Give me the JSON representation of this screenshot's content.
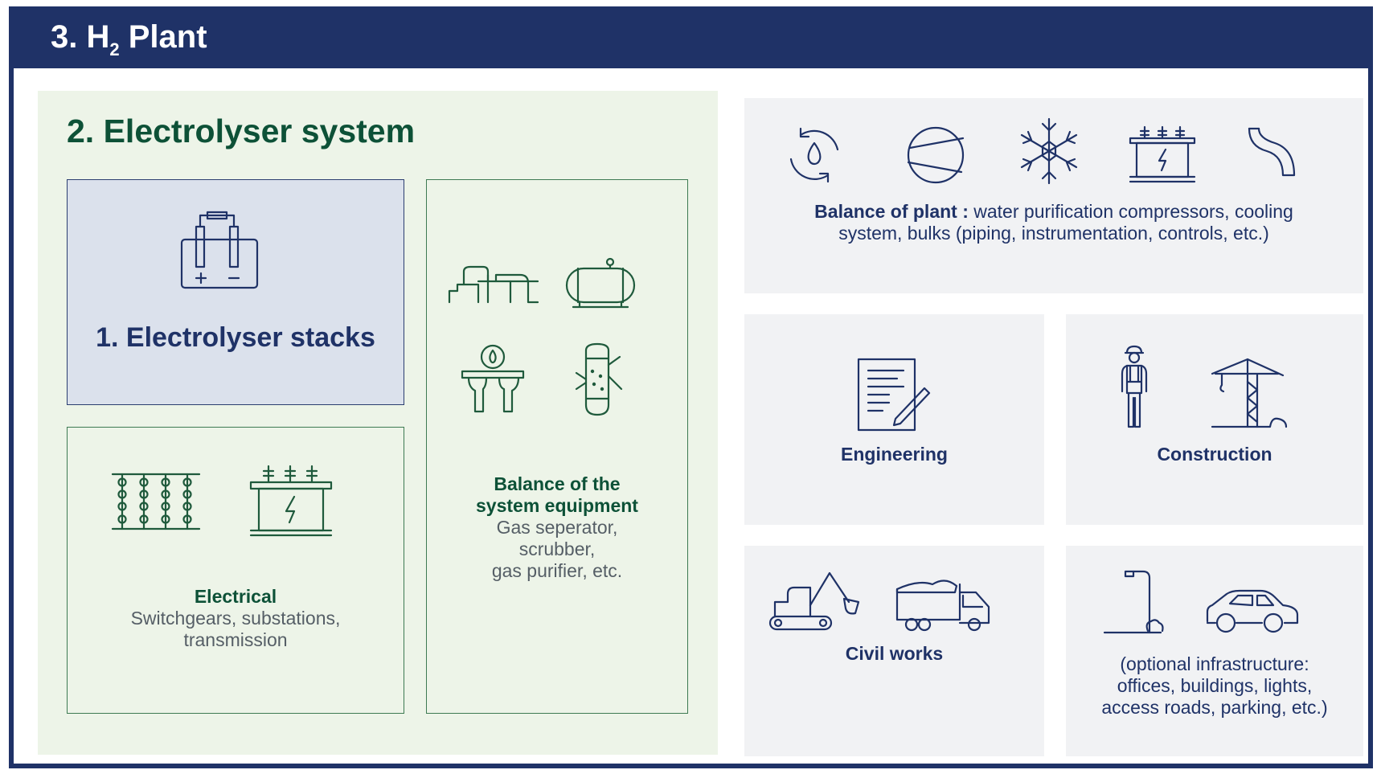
{
  "header": {
    "title_prefix": "3. H",
    "title_sub": "2",
    "title_suffix": " Plant"
  },
  "electrolyser_system": {
    "title": "2. Electrolyser system",
    "stacks_label": "1. Electrolyser stacks",
    "electrical": {
      "title": "Electrical",
      "line1": "Switchgears, substations,",
      "line2": "transmission"
    },
    "balance_system": {
      "title_line1": "Balance of the",
      "title_line2": "system equipment",
      "line1": "Gas seperator,",
      "line2": "scrubber,",
      "line3": "gas purifier, etc."
    }
  },
  "balance_of_plant": {
    "title": "Balance of plant :",
    "text_line1": " water purification compressors, cooling",
    "text_line2": "system, bulks (piping, instrumentation, controls, etc.)"
  },
  "engineering": {
    "label": "Engineering"
  },
  "construction": {
    "label": "Construction"
  },
  "civil_works": {
    "label": "Civil works"
  },
  "optional": {
    "line1": "(optional infrastructure:",
    "line2": "offices, buildings, lights,",
    "line3": "access roads, parking, etc.)"
  },
  "icons": [
    "battery-electrolyser-icon",
    "switchgear-icon",
    "transformer-icon",
    "pipeline-icon",
    "tank-icon",
    "water-treatment-icon",
    "scrubber-icon",
    "water-recycle-icon",
    "compressor-icon",
    "snowflake-icon",
    "pipe-icon",
    "document-pen-icon",
    "worker-icon",
    "crane-icon",
    "excavator-icon",
    "dump-truck-icon",
    "street-light-icon",
    "car-icon"
  ],
  "colors": {
    "navy": "#1f3267",
    "dark_green": "#0d5137",
    "light_green": "#edf4e8",
    "light_blue": "#dbe1ec",
    "light_gray": "#f1f2f4"
  }
}
